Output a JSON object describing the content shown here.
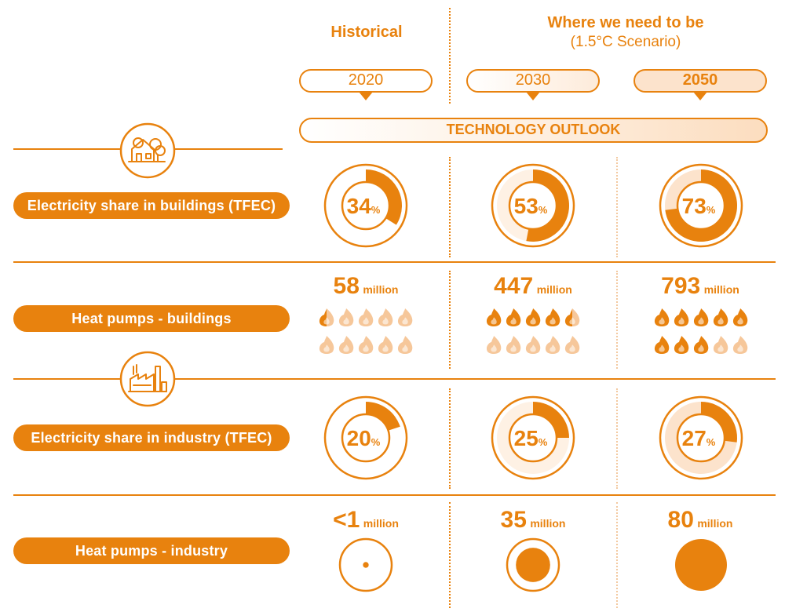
{
  "headers": {
    "historical": "Historical",
    "target_title": "Where we need to be",
    "target_sub": "(1.5°C Scenario)",
    "years": [
      "2020",
      "2030",
      "2050"
    ],
    "tech_outlook": "TECHNOLOGY OUTLOOK"
  },
  "rows": {
    "buildings_share": {
      "label": "Electricity share in buildings (TFEC)",
      "values": [
        34,
        53,
        73
      ],
      "value_labels": [
        "34",
        "53",
        "73"
      ],
      "unit": "%"
    },
    "heat_pumps_buildings": {
      "label": "Heat pumps - buildings",
      "values": [
        "58",
        "447",
        "793"
      ],
      "unit": "million",
      "flames_filled": [
        0.5,
        4.5,
        8
      ]
    },
    "industry_share": {
      "label": "Electricity share in industry (TFEC)",
      "values": [
        20,
        25,
        27
      ],
      "value_labels": [
        "20",
        "25",
        "27"
      ],
      "unit": "%"
    },
    "heat_pumps_industry": {
      "label": "Heat pumps - industry",
      "values": [
        "<1",
        "35",
        "80"
      ],
      "unit": "million",
      "magnitudes": [
        1,
        35,
        80
      ]
    }
  },
  "icons": [
    "house-trees-icon",
    "factory-icon",
    "flame-icon"
  ],
  "colors": {
    "accent": "#E8820E",
    "light": "#FCE3CC",
    "lighter": "#FEF1E4",
    "flame_light": "#F6C79A"
  }
}
